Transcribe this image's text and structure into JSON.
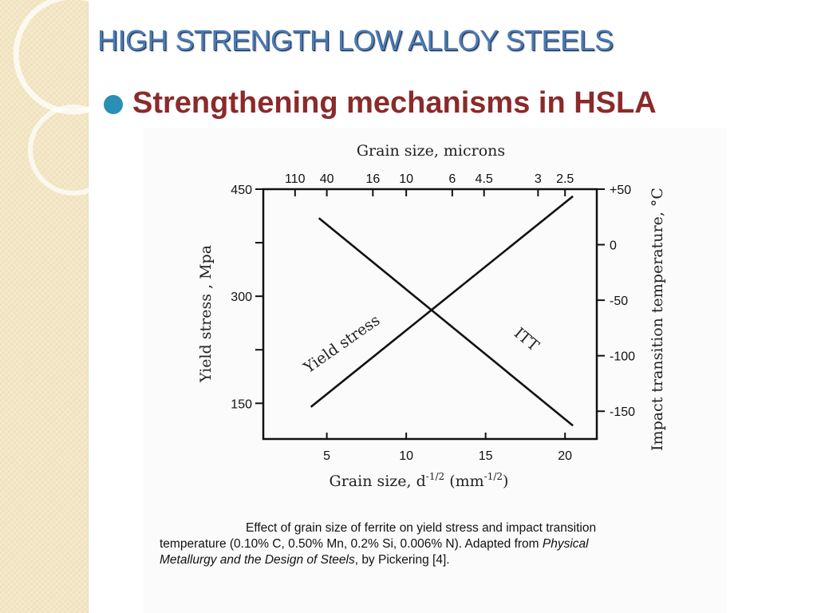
{
  "slide": {
    "title": "HIGH STRENGTH LOW ALLOY STEELS",
    "bullet": "Strengthening mechanisms in HSLA",
    "colors": {
      "title": "#4a7bb5",
      "bullet_text": "#8b2a2a",
      "bullet_dot": "#2a8fb5",
      "strip": "#f3e6c3"
    }
  },
  "chart_data": {
    "type": "line",
    "x": [
      3.5,
      20.5
    ],
    "xlim": [
      1,
      22
    ],
    "ylim": [
      100,
      450
    ],
    "ylim_right": [
      -175,
      50
    ],
    "xlabel_main": "Grain size, d",
    "xlabel_sup": "-1/2",
    "xlabel_unit_pre": "(mm",
    "xlabel_unit_sup": "-1/2",
    "xlabel_unit_post": ")",
    "top_axis_label": "Grain size, microns",
    "ylabel_left": "Yield stress , Mpa",
    "ylabel_right": "Impact transition temperature, °C",
    "x_ticks": [
      5,
      10,
      15,
      20
    ],
    "x_tick_labels": [
      "5",
      "10",
      "15",
      "20"
    ],
    "top_ticks": [
      {
        "label": "110",
        "x": 3.0
      },
      {
        "label": "40",
        "x": 5.0
      },
      {
        "label": "16",
        "x": 7.9
      },
      {
        "label": "10",
        "x": 10.0
      },
      {
        "label": "6",
        "x": 12.9
      },
      {
        "label": "4.5",
        "x": 14.9
      },
      {
        "label": "3",
        "x": 18.3
      },
      {
        "label": "2.5",
        "x": 20.0
      }
    ],
    "y_ticks": [
      150,
      300,
      450
    ],
    "y_tick_labels": [
      "150",
      "300",
      "450"
    ],
    "y_minor_ticks": [
      225,
      375
    ],
    "right_ticks": [
      50,
      0,
      -50,
      -100,
      -150
    ],
    "right_tick_labels": [
      "+50",
      "0",
      "-50",
      "-100",
      "-150"
    ],
    "series": [
      {
        "name": "Yield stress",
        "axis": "left",
        "x": [
          4.0,
          20.5
        ],
        "y": [
          145,
          440
        ]
      },
      {
        "name": "ITT",
        "axis": "right",
        "x": [
          4.5,
          20.5
        ],
        "y": [
          24,
          -163
        ]
      }
    ]
  },
  "caption": {
    "line1": "Effect of grain size of ferrite on yield stress and impact transition",
    "line2_a": "temperature (0.10% C,  0.50% Mn,  0.2% Si,  0.006% N).  Adapted from ",
    "line2_b": "Physical",
    "line3_a": "Metallurgy and the Design of Steels",
    "line3_b": ", by Pickering [4]."
  }
}
